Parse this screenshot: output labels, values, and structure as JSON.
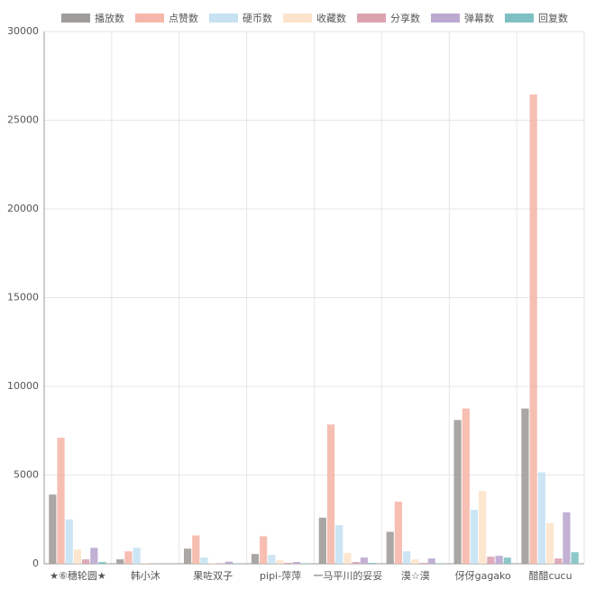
{
  "chart_data": {
    "type": "bar",
    "categories": [
      "★⑥穗轮圆★",
      "韩小沐",
      "果咗双子",
      "pipi-萍萍",
      "一马平川的妥妥",
      "漠☆漠",
      "伢伢gagako",
      "醋醋cucu"
    ],
    "series": [
      {
        "name": "播放数",
        "color": "#a09c99",
        "values": [
          3900,
          250,
          850,
          550,
          2600,
          1800,
          8100,
          8750
        ]
      },
      {
        "name": "点赞数",
        "color": "#f6b7aa",
        "values": [
          7100,
          700,
          1600,
          1550,
          7850,
          3500,
          8750,
          26450
        ]
      },
      {
        "name": "硬币数",
        "color": "#c6e2f3",
        "values": [
          2500,
          900,
          350,
          500,
          2180,
          700,
          3040,
          5150
        ]
      },
      {
        "name": "收藏数",
        "color": "#fde3cb",
        "values": [
          800,
          50,
          40,
          200,
          600,
          250,
          4100,
          2300
        ]
      },
      {
        "name": "分享数",
        "color": "#dba3b0",
        "values": [
          250,
          20,
          30,
          50,
          100,
          50,
          400,
          300
        ]
      },
      {
        "name": "弹幕数",
        "color": "#bba9cf",
        "values": [
          900,
          30,
          120,
          100,
          350,
          300,
          450,
          2900
        ]
      },
      {
        "name": "回复数",
        "color": "#7fc1c3",
        "values": [
          100,
          10,
          20,
          30,
          50,
          30,
          350,
          650
        ]
      }
    ],
    "ylim": [
      0,
      30000
    ],
    "yticks": [
      0,
      5000,
      10000,
      15000,
      20000,
      25000,
      30000
    ],
    "grid": true
  }
}
